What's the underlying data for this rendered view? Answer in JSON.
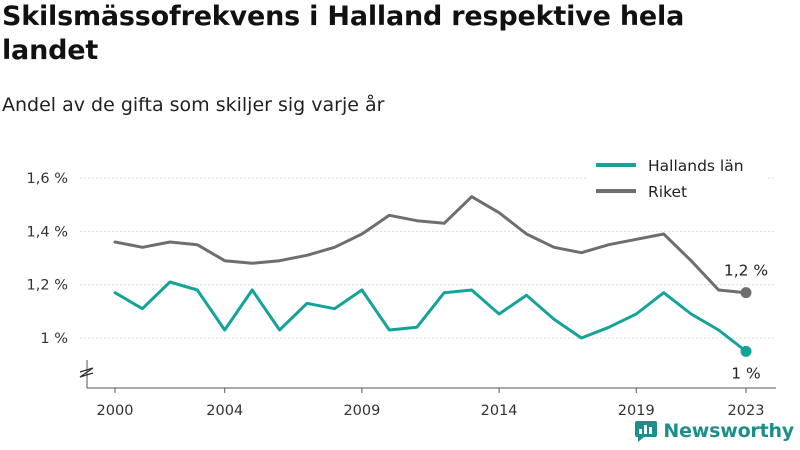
{
  "title": "Skilsmässofrekvens i Halland respektive hela landet",
  "subtitle": "Andel av de gifta som skiljer sig varje år",
  "brand": {
    "name": "Newsworthy",
    "icon": "newsworthy-logo-icon"
  },
  "colors": {
    "halland": "#14a39a",
    "riket": "#6d6d72",
    "grid": "#d9d9d9",
    "axis": "#555555",
    "brand": "#1d8f8a"
  },
  "chart_data": {
    "type": "line",
    "x": [
      2000,
      2001,
      2002,
      2003,
      2004,
      2005,
      2006,
      2007,
      2008,
      2009,
      2010,
      2011,
      2012,
      2013,
      2014,
      2015,
      2016,
      2017,
      2018,
      2019,
      2020,
      2021,
      2022,
      2023
    ],
    "series": [
      {
        "name": "Hallands län",
        "values": [
          1.17,
          1.11,
          1.21,
          1.18,
          1.03,
          1.18,
          1.03,
          1.13,
          1.11,
          1.18,
          1.03,
          1.04,
          1.17,
          1.18,
          1.09,
          1.16,
          1.07,
          1.0,
          1.04,
          1.09,
          1.17,
          1.09,
          1.03,
          0.95
        ],
        "end_label": "1 %"
      },
      {
        "name": "Riket",
        "values": [
          1.36,
          1.34,
          1.36,
          1.35,
          1.29,
          1.28,
          1.29,
          1.31,
          1.34,
          1.39,
          1.46,
          1.44,
          1.43,
          1.53,
          1.47,
          1.39,
          1.34,
          1.32,
          1.35,
          1.37,
          1.39,
          1.29,
          1.18,
          1.17
        ],
        "end_label": "1,2 %"
      }
    ],
    "xticks": [
      2000,
      2004,
      2009,
      2014,
      2019,
      2023
    ],
    "xtick_labels": [
      "2000",
      "2004",
      "2009",
      "2014",
      "2019",
      "2023"
    ],
    "yticks": [
      1.0,
      1.2,
      1.4,
      1.6
    ],
    "ytick_labels": [
      "1 %",
      "1,2 %",
      "1,4 %",
      "1,6 %"
    ],
    "ylim": [
      0.93,
      1.62
    ],
    "y_axis_break": true,
    "grid": "horizontal",
    "legend_position": "top-right",
    "xlabel": "",
    "ylabel": ""
  }
}
